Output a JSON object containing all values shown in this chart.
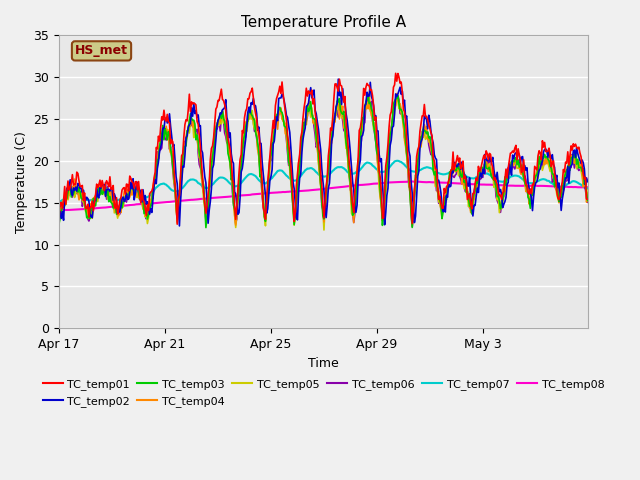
{
  "title": "Temperature Profile A",
  "xlabel": "Time",
  "ylabel": "Temperature (C)",
  "ylim": [
    0,
    35
  ],
  "yticks": [
    0,
    5,
    10,
    15,
    20,
    25,
    30,
    35
  ],
  "plot_bg_color": "#e8e8e8",
  "fig_bg_color": "#f0f0f0",
  "series_colors": {
    "TC_temp01": "#ff0000",
    "TC_temp02": "#0000cc",
    "TC_temp03": "#00cc00",
    "TC_temp04": "#ff8800",
    "TC_temp05": "#cccc00",
    "TC_temp06": "#8800aa",
    "TC_temp07": "#00cccc",
    "TC_temp08": "#ff00cc"
  },
  "annotation_text": "HS_met",
  "annotation_color": "#8B0000",
  "annotation_bg": "#cccc88",
  "legend_labels": [
    "TC_temp01",
    "TC_temp02",
    "TC_temp03",
    "TC_temp04",
    "TC_temp05",
    "TC_temp06",
    "TC_temp07",
    "TC_temp08"
  ],
  "xtick_labels": [
    "Apr 17",
    "Apr 21",
    "Apr 25",
    "Apr 29",
    "May 3"
  ],
  "xtick_positions": [
    0,
    96,
    192,
    288,
    384
  ],
  "n_points": 480,
  "figsize": [
    6.4,
    4.8
  ],
  "dpi": 100
}
